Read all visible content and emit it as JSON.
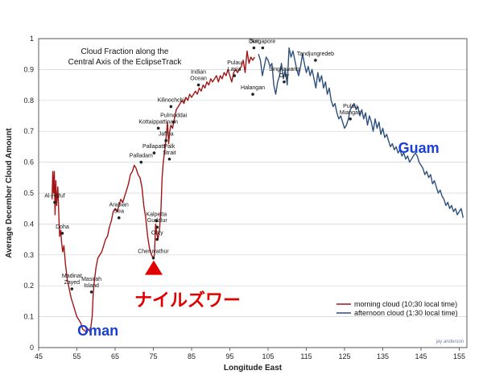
{
  "chart_data": {
    "type": "line",
    "title_lines": [
      "Cloud Fraction along the",
      "Central Axis of the EclipseTrack"
    ],
    "xlabel": "Longitude East",
    "ylabel": "Average December Cloud Amount",
    "xlim": [
      45,
      157
    ],
    "ylim": [
      0,
      1
    ],
    "xticks": [
      45,
      55,
      65,
      75,
      85,
      95,
      105,
      115,
      125,
      135,
      145,
      155
    ],
    "yticks": [
      0,
      0.1,
      0.2,
      0.3,
      0.4,
      0.5,
      0.6,
      0.7,
      0.8,
      0.9,
      1
    ],
    "grid": "horizontal",
    "legend_position": "bottom-right",
    "colors": {
      "morning": "#a31515",
      "afternoon": "#2d4f7c",
      "annotation_red": "#e00000",
      "annotation_blue": "#1a3fd6",
      "marker": "#e00000"
    },
    "series": [
      {
        "name": "morning cloud (10;30 local time)",
        "points": [
          [
            48.5,
            0.48
          ],
          [
            48.7,
            0.57
          ],
          [
            48.9,
            0.5
          ],
          [
            49.1,
            0.57
          ],
          [
            49.3,
            0.43
          ],
          [
            49.5,
            0.54
          ],
          [
            49.7,
            0.46
          ],
          [
            50,
            0.52
          ],
          [
            50.3,
            0.42
          ],
          [
            50.5,
            0.36
          ],
          [
            50.8,
            0.38
          ],
          [
            51,
            0.34
          ],
          [
            51.3,
            0.31
          ],
          [
            51.6,
            0.33
          ],
          [
            52,
            0.27
          ],
          [
            52.5,
            0.22
          ],
          [
            53,
            0.19
          ],
          [
            53.5,
            0.16
          ],
          [
            54,
            0.14
          ],
          [
            54.5,
            0.12
          ],
          [
            55,
            0.1
          ],
          [
            55.5,
            0.09
          ],
          [
            56,
            0.08
          ],
          [
            56.5,
            0.06
          ],
          [
            57,
            0.055
          ],
          [
            57.5,
            0.05
          ],
          [
            58,
            0.06
          ],
          [
            58.5,
            0.05
          ],
          [
            59,
            0.1
          ],
          [
            59.3,
            0.18
          ],
          [
            59.6,
            0.22
          ],
          [
            60,
            0.26
          ],
          [
            60.5,
            0.29
          ],
          [
            61,
            0.3
          ],
          [
            61.5,
            0.31
          ],
          [
            62,
            0.33
          ],
          [
            62.5,
            0.35
          ],
          [
            63,
            0.36
          ],
          [
            63.5,
            0.39
          ],
          [
            64,
            0.41
          ],
          [
            64.5,
            0.44
          ],
          [
            65,
            0.45
          ],
          [
            65.5,
            0.44
          ],
          [
            66,
            0.46
          ],
          [
            66.5,
            0.48
          ],
          [
            67,
            0.47
          ],
          [
            67.5,
            0.49
          ],
          [
            68,
            0.51
          ],
          [
            68.5,
            0.53
          ],
          [
            69,
            0.56
          ],
          [
            69.5,
            0.57
          ],
          [
            70,
            0.59
          ],
          [
            70.5,
            0.58
          ],
          [
            71,
            0.56
          ],
          [
            71.5,
            0.55
          ],
          [
            72,
            0.52
          ],
          [
            72.5,
            0.46
          ],
          [
            73,
            0.42
          ],
          [
            73.5,
            0.36
          ],
          [
            74,
            0.32
          ],
          [
            74.5,
            0.3
          ],
          [
            75,
            0.29
          ],
          [
            75.3,
            0.3
          ],
          [
            75.6,
            0.4
          ],
          [
            75.9,
            0.37
          ],
          [
            76.2,
            0.35
          ],
          [
            76.6,
            0.38
          ],
          [
            77,
            0.45
          ],
          [
            77.3,
            0.55
          ],
          [
            77.6,
            0.6
          ],
          [
            78,
            0.64
          ],
          [
            78.4,
            0.69
          ],
          [
            78.7,
            0.73
          ],
          [
            79,
            0.66
          ],
          [
            79.3,
            0.7
          ],
          [
            79.6,
            0.72
          ],
          [
            80,
            0.71
          ],
          [
            80.5,
            0.74
          ],
          [
            81,
            0.77
          ],
          [
            81.5,
            0.78
          ],
          [
            82,
            0.79
          ],
          [
            82.5,
            0.8
          ],
          [
            83,
            0.79
          ],
          [
            83.5,
            0.81
          ],
          [
            84,
            0.8
          ],
          [
            84.5,
            0.82
          ],
          [
            85,
            0.81
          ],
          [
            85.5,
            0.82
          ],
          [
            86,
            0.83
          ],
          [
            86.5,
            0.82
          ],
          [
            87,
            0.84
          ],
          [
            87.5,
            0.83
          ],
          [
            88,
            0.85
          ],
          [
            88.5,
            0.84
          ],
          [
            89,
            0.86
          ],
          [
            89.5,
            0.85
          ],
          [
            90,
            0.87
          ],
          [
            90.5,
            0.86
          ],
          [
            91,
            0.87
          ],
          [
            91.5,
            0.88
          ],
          [
            92,
            0.86
          ],
          [
            92.5,
            0.88
          ],
          [
            93,
            0.87
          ],
          [
            93.5,
            0.89
          ],
          [
            94,
            0.88
          ],
          [
            94.5,
            0.9
          ],
          [
            95,
            0.88
          ],
          [
            95.5,
            0.86
          ],
          [
            96,
            0.89
          ],
          [
            96.5,
            0.9
          ],
          [
            97,
            0.89
          ],
          [
            97.5,
            0.9
          ],
          [
            98,
            0.91
          ],
          [
            98.5,
            0.93
          ],
          [
            99,
            0.89
          ],
          [
            99.5,
            0.96
          ],
          [
            100,
            0.92
          ],
          [
            100.5,
            0.94
          ],
          [
            101,
            0.93
          ],
          [
            101.5,
            0.94
          ]
        ]
      },
      {
        "name": "afternoon cloud (1:30 local time)",
        "points": [
          [
            102.5,
            0.95
          ],
          [
            103,
            0.93
          ],
          [
            103.5,
            0.88
          ],
          [
            104,
            0.91
          ],
          [
            104.5,
            0.94
          ],
          [
            105,
            0.93
          ],
          [
            105.5,
            0.91
          ],
          [
            106,
            0.92
          ],
          [
            106.5,
            0.85
          ],
          [
            107,
            0.82
          ],
          [
            107.5,
            0.86
          ],
          [
            108,
            0.88
          ],
          [
            108.5,
            0.92
          ],
          [
            109,
            0.87
          ],
          [
            109.5,
            0.9
          ],
          [
            110,
            0.85
          ],
          [
            110.5,
            0.97
          ],
          [
            111,
            0.94
          ],
          [
            111.5,
            0.96
          ],
          [
            112,
            0.93
          ],
          [
            112.5,
            0.9
          ],
          [
            113,
            0.88
          ],
          [
            113.5,
            0.91
          ],
          [
            114,
            0.95
          ],
          [
            114.5,
            0.92
          ],
          [
            115,
            0.89
          ],
          [
            115.5,
            0.91
          ],
          [
            116,
            0.88
          ],
          [
            116.5,
            0.9
          ],
          [
            117,
            0.87
          ],
          [
            117.5,
            0.84
          ],
          [
            118,
            0.89
          ],
          [
            118.5,
            0.86
          ],
          [
            119,
            0.88
          ],
          [
            119.5,
            0.84
          ],
          [
            120,
            0.86
          ],
          [
            120.5,
            0.82
          ],
          [
            121,
            0.84
          ],
          [
            121.5,
            0.8
          ],
          [
            122,
            0.78
          ],
          [
            122.5,
            0.79
          ],
          [
            123,
            0.76
          ],
          [
            123.5,
            0.74
          ],
          [
            124,
            0.75
          ],
          [
            124.5,
            0.73
          ],
          [
            125,
            0.71
          ],
          [
            125.5,
            0.72
          ],
          [
            126,
            0.74
          ],
          [
            126.5,
            0.77
          ],
          [
            127,
            0.78
          ],
          [
            127.5,
            0.79
          ],
          [
            128,
            0.77
          ],
          [
            128.5,
            0.78
          ],
          [
            129,
            0.75
          ],
          [
            129.5,
            0.77
          ],
          [
            130,
            0.74
          ],
          [
            130.5,
            0.76
          ],
          [
            131,
            0.72
          ],
          [
            131.5,
            0.75
          ],
          [
            132,
            0.73
          ],
          [
            132.5,
            0.7
          ],
          [
            133,
            0.74
          ],
          [
            133.5,
            0.71
          ],
          [
            134,
            0.73
          ],
          [
            134.5,
            0.69
          ],
          [
            135,
            0.71
          ],
          [
            135.5,
            0.68
          ],
          [
            136,
            0.69
          ],
          [
            136.5,
            0.67
          ],
          [
            137,
            0.65
          ],
          [
            137.5,
            0.66
          ],
          [
            138,
            0.64
          ],
          [
            138.5,
            0.65
          ],
          [
            139,
            0.63
          ],
          [
            139.5,
            0.64
          ],
          [
            140,
            0.62
          ],
          [
            140.5,
            0.63
          ],
          [
            141,
            0.61
          ],
          [
            141.5,
            0.62
          ],
          [
            142,
            0.6
          ],
          [
            142.5,
            0.61
          ],
          [
            143,
            0.62
          ],
          [
            143.5,
            0.63
          ],
          [
            144,
            0.62
          ],
          [
            144.5,
            0.6
          ],
          [
            145,
            0.59
          ],
          [
            145.5,
            0.58
          ],
          [
            146,
            0.56
          ],
          [
            146.5,
            0.57
          ],
          [
            147,
            0.55
          ],
          [
            147.5,
            0.56
          ],
          [
            148,
            0.53
          ],
          [
            148.5,
            0.54
          ],
          [
            149,
            0.52
          ],
          [
            149.5,
            0.5
          ],
          [
            150,
            0.51
          ],
          [
            150.5,
            0.49
          ],
          [
            151,
            0.48
          ],
          [
            151.5,
            0.46
          ],
          [
            152,
            0.47
          ],
          [
            152.5,
            0.45
          ],
          [
            153,
            0.46
          ],
          [
            153.5,
            0.44
          ],
          [
            154,
            0.45
          ],
          [
            154.5,
            0.43
          ],
          [
            155,
            0.44
          ],
          [
            155.5,
            0.45
          ],
          [
            156,
            0.42
          ]
        ]
      }
    ],
    "annotations": [
      {
        "text": "Al-Hofuf",
        "x": 49.2,
        "y": 0.47
      },
      {
        "text": "Doha",
        "x": 51.2,
        "y": 0.37
      },
      {
        "text": "Madinat\nZayed",
        "x": 53.7,
        "y": 0.19
      },
      {
        "text": "Masirah\nIsland",
        "x": 58.8,
        "y": 0.18
      },
      {
        "text": "Arabian\nSea",
        "x": 66,
        "y": 0.42
      },
      {
        "text": "Palladam",
        "x": 71.8,
        "y": 0.6
      },
      {
        "text": "Pallapatti",
        "x": 75.2,
        "y": 0.63
      },
      {
        "text": "Kottaippattinam",
        "x": 76.3,
        "y": 0.71
      },
      {
        "text": "Kilinochchi",
        "x": 79.6,
        "y": 0.78
      },
      {
        "text": "Pulmoddai",
        "x": 80.3,
        "y": 0.73
      },
      {
        "text": "Jaffna",
        "x": 78.3,
        "y": 0.67
      },
      {
        "text": "Palk\nStrait",
        "x": 79.2,
        "y": 0.61
      },
      {
        "text": "Kalpetta",
        "x": 75.8,
        "y": 0.41
      },
      {
        "text": "Gudalur",
        "x": 76.0,
        "y": 0.39
      },
      {
        "text": "Ooty",
        "x": 76.0,
        "y": 0.35
      },
      {
        "text": "Cheruvathur",
        "x": 75.0,
        "y": 0.29
      },
      {
        "text": "Indian\nOcean",
        "x": 86.8,
        "y": 0.85
      },
      {
        "text": "Pulau\nLasia",
        "x": 96.2,
        "y": 0.88
      },
      {
        "text": "Duri",
        "x": 101.3,
        "y": 0.97
      },
      {
        "text": "Halangan",
        "x": 101.0,
        "y": 0.82
      },
      {
        "text": "Singapore",
        "x": 103.6,
        "y": 0.97
      },
      {
        "text": "Singkawang\nCity",
        "x": 109.2,
        "y": 0.86
      },
      {
        "text": "Tandjungredeb",
        "x": 117.4,
        "y": 0.93
      },
      {
        "text": "Pulau\nMiangas",
        "x": 126.5,
        "y": 0.74
      }
    ],
    "callouts": [
      {
        "text": "Oman",
        "x": 60.5,
        "y": 0.05
      },
      {
        "text": "Guam",
        "x": 144.4,
        "y": 0.64
      }
    ],
    "marker": {
      "text": "ナイルズワー",
      "x": 75.1,
      "y": 0.29
    },
    "credit": "jay anderson"
  }
}
